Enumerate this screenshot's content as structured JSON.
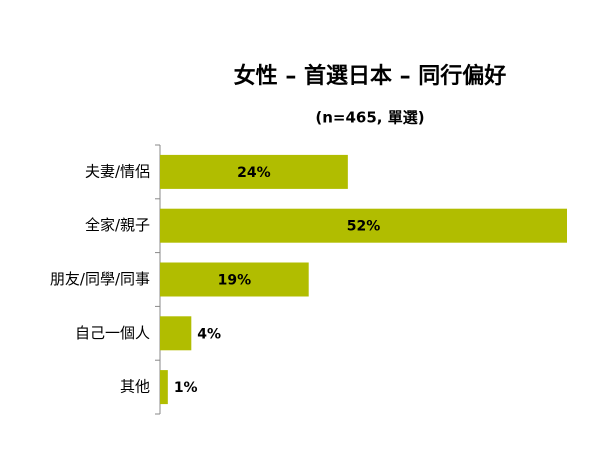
{
  "chart_data": {
    "type": "bar",
    "orientation": "horizontal",
    "title": "女性 – 首選日本 – 同行偏好",
    "subtitle": "(n=465, 單選)",
    "categories": [
      "夫妻/情侶",
      "全家/親子",
      "朋友/同學/同事",
      "自己一個人",
      "其他"
    ],
    "values": [
      24,
      52,
      19,
      4,
      1
    ],
    "value_labels": [
      "24%",
      "52%",
      "19%",
      "4%",
      "1%"
    ],
    "color": "#b1bd00"
  }
}
